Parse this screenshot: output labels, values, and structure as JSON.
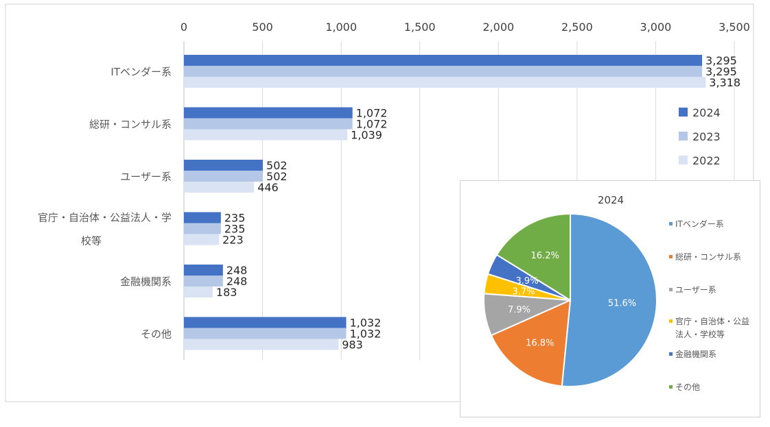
{
  "chart_data": [
    {
      "type": "bar",
      "orientation": "horizontal",
      "categories": [
        "ITベンダー系",
        "総研・コンサル系",
        "ユーザー系",
        "官庁・自治体・公益法人・学校等",
        "金融機関系",
        "その他"
      ],
      "category_lines": [
        [
          "ITベンダー系"
        ],
        [
          "総研・コンサル系"
        ],
        [
          "ユーザー系"
        ],
        [
          "官庁・自治体・公益法人・学",
          "校等"
        ],
        [
          "金融機関系"
        ],
        [
          "その他"
        ]
      ],
      "series": [
        {
          "name": "2024",
          "color": "#4472c4",
          "values": [
            3295,
            1072,
            502,
            235,
            248,
            1032
          ],
          "labels": [
            "3,295",
            "1,072",
            "502",
            "235",
            "248",
            "1,032"
          ]
        },
        {
          "name": "2023",
          "color": "#b4c7e7",
          "values": [
            3295,
            1072,
            502,
            235,
            248,
            1032
          ],
          "labels": [
            "3,295",
            "1,072",
            "502",
            "235",
            "248",
            "1,032"
          ]
        },
        {
          "name": "2022",
          "color": "#dae3f3",
          "values": [
            3318,
            1039,
            446,
            223,
            183,
            983
          ],
          "labels": [
            "3,318",
            "1,039",
            "446",
            "223",
            "183",
            "983"
          ]
        }
      ],
      "xlim": [
        0,
        3500
      ],
      "ticks": [
        0,
        500,
        1000,
        1500,
        2000,
        2500,
        3000,
        3500
      ],
      "tick_labels": [
        "0",
        "500",
        "1,000",
        "1,500",
        "2,000",
        "2,500",
        "3,000",
        "3,500"
      ],
      "axis_position": "top",
      "grid": true,
      "legend_position": "right"
    },
    {
      "type": "pie",
      "title": "2024",
      "slices": [
        {
          "name": "ITベンダー系",
          "value": 51.6,
          "label": "51.6%",
          "color": "#5b9bd5"
        },
        {
          "name": "総研・コンサル系",
          "value": 16.8,
          "label": "16.8%",
          "color": "#ed7d31"
        },
        {
          "name": "ユーザー系",
          "value": 7.9,
          "label": "7.9%",
          "color": "#a5a5a5"
        },
        {
          "name": "官庁・自治体・公益法人・学校等",
          "value": 3.7,
          "label": "3.7%",
          "color": "#ffc000"
        },
        {
          "name": "金融機関系",
          "value": 3.9,
          "label": "3.9%",
          "color": "#4472c4"
        },
        {
          "name": "その他",
          "value": 16.2,
          "label": "16.2%",
          "color": "#70ad47"
        }
      ],
      "legend": [
        {
          "lines": [
            "ITベンダー系"
          ],
          "color": "#5b9bd5"
        },
        {
          "lines": [
            "総研・コンサル系"
          ],
          "color": "#ed7d31"
        },
        {
          "lines": [
            "ユーザー系"
          ],
          "color": "#a5a5a5"
        },
        {
          "lines": [
            "官庁・自治体・公益",
            "法人・学校等"
          ],
          "color": "#ffc000"
        },
        {
          "lines": [
            "金融機関系"
          ],
          "color": "#4472c4"
        },
        {
          "lines": [
            "その他"
          ],
          "color": "#70ad47"
        }
      ],
      "legend_position": "right"
    }
  ]
}
